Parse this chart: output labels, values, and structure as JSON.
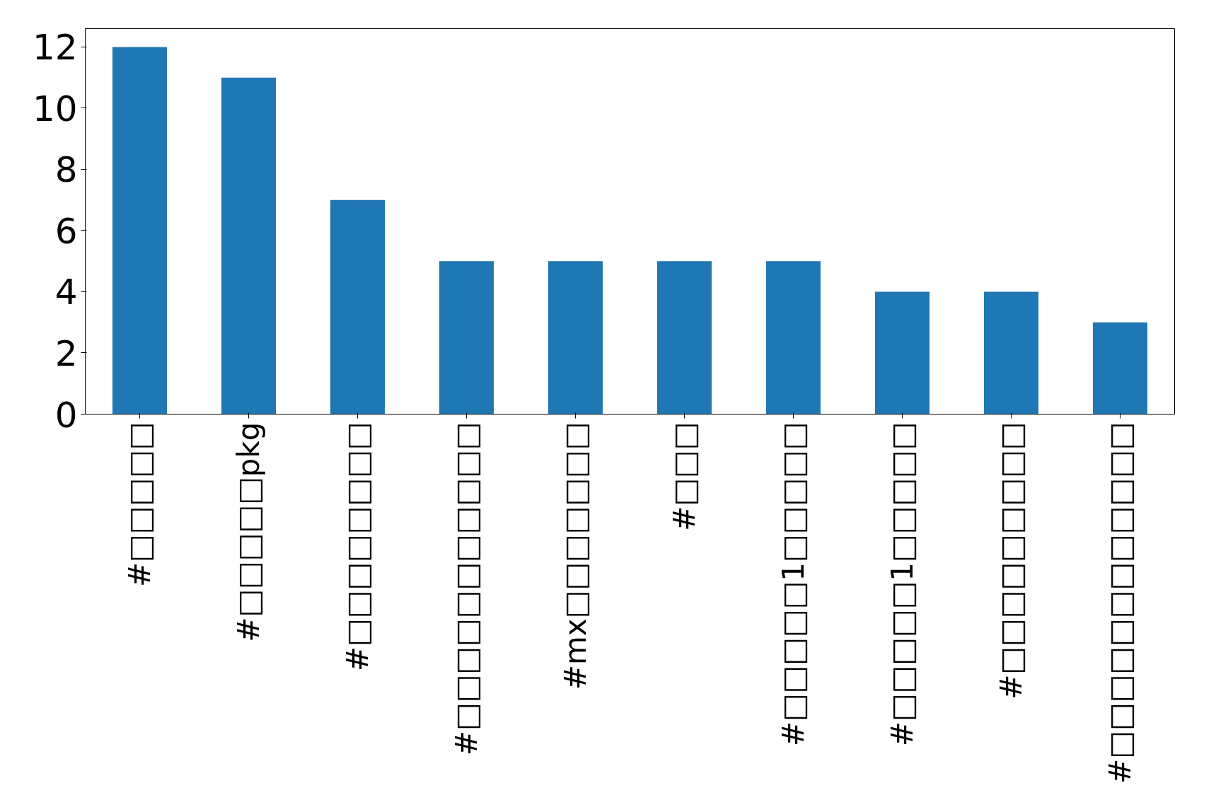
{
  "chart_data": {
    "type": "bar",
    "categories": [
      "#□□□□□",
      "#□□□□□pkg",
      "#□□□□□□□□",
      "#□□□□□□□□□□□",
      "#mx□□□□□□□",
      "#□□□",
      "#□□□□□1□□□□□",
      "#□□□□□1□□□□□",
      "#□□□□□□□□□",
      "#□□□□□□□□□□□□"
    ],
    "values": [
      12,
      11,
      7,
      5,
      5,
      5,
      5,
      4,
      4,
      3
    ],
    "color": "#1f77b4",
    "ylim": [
      0,
      12.6
    ],
    "yticks": [
      0,
      2,
      4,
      6,
      8,
      10,
      12
    ],
    "grid": false
  }
}
